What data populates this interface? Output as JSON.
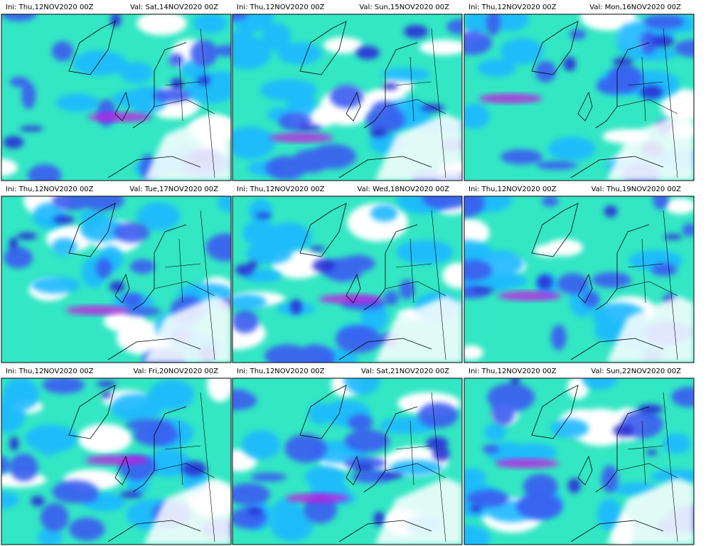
{
  "panels": [
    {
      "ini": "Ini: Thu,12NOV2020 00Z",
      "val": "Val: Sat,14NOV2020 00Z"
    },
    {
      "ini": "Ini: Thu,12NOV2020 00Z",
      "val": "Val: Sun,15NOV2020 00Z"
    },
    {
      "ini": "Ini: Thu,12NOV2020 00Z",
      "val": "Val: Mon,16NOV2020 00Z"
    },
    {
      "ini": "Ini: Thu,12NOV2020 00Z",
      "val": "Val: Tue,17NOV2020 00Z"
    },
    {
      "ini": "Ini: Thu,12NOV2020 00Z",
      "val": "Val: Wed,18NOV2020 00Z"
    },
    {
      "ini": "Ini: Thu,12NOV2020 00Z",
      "val": "Val: Thu,19NOV2020 00Z"
    },
    {
      "ini": "Ini: Thu,12NOV2020 00Z",
      "val": "Val: Fri,20NOV2020 00Z"
    },
    {
      "ini": "Ini: Thu,12NOV2020 00Z",
      "val": "Val: Sat,21NOV2020 00Z"
    },
    {
      "ini": "Ini: Thu,12NOV2020 00Z",
      "val": "Val: Sun,22NOV2020 00Z"
    }
  ]
}
